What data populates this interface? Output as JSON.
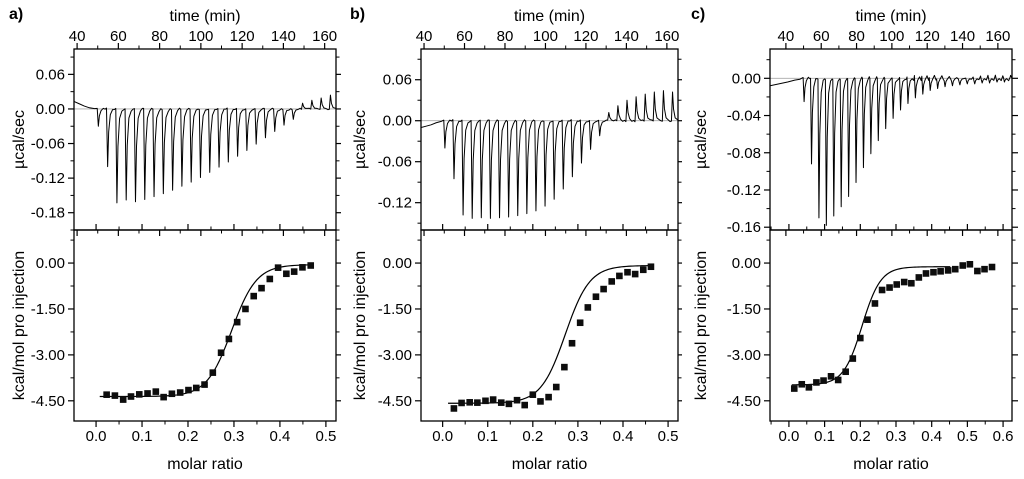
{
  "figure": {
    "background": "#ffffff",
    "ink": "#000000",
    "zero_line_color": "#a8a8a8"
  },
  "chart_data": [
    {
      "label": "a)",
      "top": {
        "type": "line",
        "title": "time (min)",
        "ylabel": "µcal/sec",
        "xlim": [
          38.5,
          165.5
        ],
        "ylim": [
          -0.21,
          0.104
        ],
        "xticks": [
          {
            "v": 40,
            "t": "40"
          },
          {
            "v": 60,
            "t": "60"
          },
          {
            "v": 80,
            "t": "80"
          },
          {
            "v": 100,
            "t": "100"
          },
          {
            "v": 120,
            "t": "120"
          },
          {
            "v": 140,
            "t": "140"
          },
          {
            "v": 160,
            "t": "160"
          }
        ],
        "x_minor_step": 10,
        "yticks": [
          {
            "v": 0.06,
            "t": "0.06"
          },
          {
            "v": 0,
            "t": "0.00"
          },
          {
            "v": -0.06,
            "t": "-0.06"
          },
          {
            "v": -0.12,
            "t": "-0.12"
          },
          {
            "v": -0.18,
            "t": "-0.18"
          }
        ],
        "y_minor_step": 0.03,
        "zero_line": true,
        "pre_baseline": [
          [
            38.5,
            0.013
          ],
          [
            41,
            0.009
          ],
          [
            43.5,
            0.005
          ],
          [
            46,
            0.002
          ],
          [
            48.5,
            0.0005
          ]
        ],
        "injections": {
          "start_min": 50,
          "interval_min": 4.5,
          "peaks_ucal_per_sec": [
            -0.03,
            -0.1,
            -0.163,
            -0.158,
            -0.161,
            -0.157,
            -0.152,
            -0.147,
            -0.141,
            -0.134,
            -0.127,
            -0.119,
            -0.11,
            -0.101,
            -0.092,
            -0.082,
            -0.072,
            -0.061,
            -0.05,
            -0.039,
            -0.028,
            -0.018,
            0.01,
            0.015,
            0.019,
            0.024
          ]
        }
      },
      "bottom": {
        "type": "scatter",
        "ylabel": "kcal/mol pro injection",
        "xlabel": "molar ratio",
        "xlim": [
          -0.048,
          0.522
        ],
        "ylim": [
          -5.16,
          1.08
        ],
        "xticks": [
          {
            "v": 0.0,
            "t": "0.0"
          },
          {
            "v": 0.1,
            "t": "0.1"
          },
          {
            "v": 0.2,
            "t": "0.2"
          },
          {
            "v": 0.3,
            "t": "0.3"
          },
          {
            "v": 0.4,
            "t": "0.4"
          },
          {
            "v": 0.5,
            "t": "0.5"
          }
        ],
        "x_minor_step": 0.05,
        "yticks": [
          {
            "v": 0,
            "t": "0.00"
          },
          {
            "v": -1.5,
            "t": "-1.50"
          },
          {
            "v": -3,
            "t": "-3.00"
          },
          {
            "v": -4.5,
            "t": "-4.50"
          }
        ],
        "y_minor_step": 0.75,
        "points": [
          [
            0.023,
            -4.3
          ],
          [
            0.041,
            -4.33
          ],
          [
            0.059,
            -4.46
          ],
          [
            0.076,
            -4.36
          ],
          [
            0.094,
            -4.29
          ],
          [
            0.112,
            -4.26
          ],
          [
            0.13,
            -4.2
          ],
          [
            0.147,
            -4.38
          ],
          [
            0.165,
            -4.27
          ],
          [
            0.183,
            -4.23
          ],
          [
            0.201,
            -4.15
          ],
          [
            0.218,
            -4.08
          ],
          [
            0.236,
            -3.97
          ],
          [
            0.254,
            -3.58
          ],
          [
            0.272,
            -2.93
          ],
          [
            0.289,
            -2.48
          ],
          [
            0.307,
            -1.93
          ],
          [
            0.325,
            -1.5
          ],
          [
            0.343,
            -1.08
          ],
          [
            0.36,
            -0.82
          ],
          [
            0.378,
            -0.52
          ],
          [
            0.396,
            -0.15
          ],
          [
            0.414,
            -0.35
          ],
          [
            0.431,
            -0.28
          ],
          [
            0.449,
            -0.14
          ],
          [
            0.467,
            -0.08
          ]
        ],
        "fit": {
          "low_plateau": -4.36,
          "high_plateau": -0.05,
          "x_mid": 0.295,
          "width": 0.027,
          "x_min": 0.008,
          "x_max": 0.467
        }
      }
    },
    {
      "label": "b)",
      "top": {
        "type": "line",
        "title": "time (min)",
        "ylabel": "µcal/sec",
        "xlim": [
          38.5,
          165.5
        ],
        "ylim": [
          -0.16,
          0.105
        ],
        "xticks": [
          {
            "v": 40,
            "t": "40"
          },
          {
            "v": 60,
            "t": "60"
          },
          {
            "v": 80,
            "t": "80"
          },
          {
            "v": 100,
            "t": "100"
          },
          {
            "v": 120,
            "t": "120"
          },
          {
            "v": 140,
            "t": "140"
          },
          {
            "v": 160,
            "t": "160"
          }
        ],
        "x_minor_step": 10,
        "yticks": [
          {
            "v": 0.06,
            "t": "0.06"
          },
          {
            "v": 0,
            "t": "0.00"
          },
          {
            "v": -0.06,
            "t": "-0.06"
          },
          {
            "v": -0.12,
            "t": "-0.12"
          }
        ],
        "y_minor_step": 0.03,
        "zero_line": true,
        "pre_baseline": [
          [
            38.5,
            -0.01
          ],
          [
            41,
            -0.008
          ],
          [
            43.5,
            -0.006
          ],
          [
            46,
            -0.003
          ],
          [
            48.5,
            -0.001
          ]
        ],
        "injections": {
          "start_min": 50,
          "interval_min": 4.5,
          "peaks_ucal_per_sec": [
            -0.04,
            -0.085,
            -0.138,
            -0.143,
            -0.142,
            -0.143,
            -0.142,
            -0.141,
            -0.139,
            -0.136,
            -0.132,
            -0.125,
            -0.115,
            -0.1,
            -0.082,
            -0.062,
            -0.042,
            -0.022,
            0.012,
            0.022,
            0.03,
            0.035,
            0.039,
            0.042,
            0.044,
            0.042
          ]
        }
      },
      "bottom": {
        "type": "scatter",
        "ylabel": "kcal/mol pro injection",
        "xlabel": "molar ratio",
        "xlim": [
          -0.048,
          0.522
        ],
        "ylim": [
          -5.16,
          1.08
        ],
        "xticks": [
          {
            "v": 0.0,
            "t": "0.0"
          },
          {
            "v": 0.1,
            "t": "0.1"
          },
          {
            "v": 0.2,
            "t": "0.2"
          },
          {
            "v": 0.3,
            "t": "0.3"
          },
          {
            "v": 0.4,
            "t": "0.4"
          },
          {
            "v": 0.5,
            "t": "0.5"
          }
        ],
        "x_minor_step": 0.05,
        "yticks": [
          {
            "v": 0,
            "t": "0.00"
          },
          {
            "v": -1.5,
            "t": "-1.50"
          },
          {
            "v": -3,
            "t": "-3.00"
          },
          {
            "v": -4.5,
            "t": "-4.50"
          }
        ],
        "y_minor_step": 0.75,
        "points": [
          [
            0.025,
            -4.75
          ],
          [
            0.042,
            -4.57
          ],
          [
            0.06,
            -4.55
          ],
          [
            0.077,
            -4.56
          ],
          [
            0.095,
            -4.5
          ],
          [
            0.112,
            -4.46
          ],
          [
            0.13,
            -4.56
          ],
          [
            0.147,
            -4.6
          ],
          [
            0.165,
            -4.48
          ],
          [
            0.182,
            -4.64
          ],
          [
            0.2,
            -4.3
          ],
          [
            0.217,
            -4.52
          ],
          [
            0.235,
            -4.38
          ],
          [
            0.252,
            -4.05
          ],
          [
            0.27,
            -3.4
          ],
          [
            0.287,
            -2.62
          ],
          [
            0.305,
            -1.95
          ],
          [
            0.322,
            -1.45
          ],
          [
            0.34,
            -1.1
          ],
          [
            0.357,
            -0.85
          ],
          [
            0.375,
            -0.6
          ],
          [
            0.392,
            -0.42
          ],
          [
            0.41,
            -0.3
          ],
          [
            0.427,
            -0.36
          ],
          [
            0.445,
            -0.22
          ],
          [
            0.462,
            -0.12
          ]
        ],
        "fit": {
          "low_plateau": -4.58,
          "high_plateau": -0.08,
          "x_mid": 0.272,
          "width": 0.027,
          "x_min": 0.012,
          "x_max": 0.462
        }
      }
    },
    {
      "label": "c)",
      "top": {
        "type": "line",
        "title": "time (min)",
        "ylabel": "µcal/sec",
        "xlim": [
          31,
          168
        ],
        "ylim": [
          -0.163,
          0.0315
        ],
        "xticks": [
          {
            "v": 40,
            "t": "40"
          },
          {
            "v": 60,
            "t": "60"
          },
          {
            "v": 80,
            "t": "80"
          },
          {
            "v": 100,
            "t": "100"
          },
          {
            "v": 120,
            "t": "120"
          },
          {
            "v": 140,
            "t": "140"
          },
          {
            "v": 160,
            "t": "160"
          }
        ],
        "x_minor_step": 10,
        "yticks": [
          {
            "v": 0,
            "t": "0.00"
          },
          {
            "v": -0.04,
            "t": "-0.04"
          },
          {
            "v": -0.08,
            "t": "-0.08"
          },
          {
            "v": -0.12,
            "t": "-0.12"
          },
          {
            "v": -0.16,
            "t": "-0.16"
          }
        ],
        "y_minor_step": 0.02,
        "zero_line": true,
        "pre_baseline": [
          [
            31,
            -0.008
          ],
          [
            36,
            -0.006
          ],
          [
            41,
            -0.004
          ],
          [
            45,
            -0.002
          ],
          [
            48,
            -0.001
          ]
        ],
        "injections": {
          "start_min": 50,
          "interval_min": 4.2,
          "peaks_ucal_per_sec": [
            -0.025,
            -0.092,
            -0.15,
            -0.158,
            -0.148,
            -0.138,
            -0.127,
            -0.112,
            -0.096,
            -0.081,
            -0.067,
            -0.054,
            -0.043,
            -0.034,
            -0.027,
            -0.021,
            -0.017,
            -0.013,
            -0.011,
            -0.009,
            -0.008,
            -0.007,
            -0.006,
            -0.006,
            -0.005,
            -0.005,
            -0.004,
            -0.004
          ]
        }
      },
      "bottom": {
        "type": "scatter",
        "ylabel": "kcal/mol pro injection",
        "xlabel": "molar ratio",
        "xlim": [
          -0.053,
          0.625
        ],
        "ylim": [
          -5.16,
          1.08
        ],
        "xticks": [
          {
            "v": 0.0,
            "t": "0.0"
          },
          {
            "v": 0.1,
            "t": "0.1"
          },
          {
            "v": 0.2,
            "t": "0.2"
          },
          {
            "v": 0.3,
            "t": "0.3"
          },
          {
            "v": 0.4,
            "t": "0.4"
          },
          {
            "v": 0.5,
            "t": "0.5"
          },
          {
            "v": 0.6,
            "t": "0.6"
          }
        ],
        "x_minor_step": 0.05,
        "yticks": [
          {
            "v": 0,
            "t": "0.00"
          },
          {
            "v": -1.5,
            "t": "-1.50"
          },
          {
            "v": -3,
            "t": "-3.00"
          },
          {
            "v": -4.5,
            "t": "-4.50"
          }
        ],
        "y_minor_step": 0.75,
        "points": [
          [
            0.015,
            -4.1
          ],
          [
            0.036,
            -3.96
          ],
          [
            0.056,
            -4.06
          ],
          [
            0.077,
            -3.9
          ],
          [
            0.097,
            -3.84
          ],
          [
            0.118,
            -3.7
          ],
          [
            0.138,
            -3.82
          ],
          [
            0.159,
            -3.55
          ],
          [
            0.179,
            -3.12
          ],
          [
            0.2,
            -2.45
          ],
          [
            0.22,
            -1.85
          ],
          [
            0.241,
            -1.32
          ],
          [
            0.261,
            -0.88
          ],
          [
            0.282,
            -0.8
          ],
          [
            0.302,
            -0.7
          ],
          [
            0.323,
            -0.62
          ],
          [
            0.343,
            -0.66
          ],
          [
            0.364,
            -0.47
          ],
          [
            0.384,
            -0.34
          ],
          [
            0.405,
            -0.3
          ],
          [
            0.425,
            -0.27
          ],
          [
            0.446,
            -0.24
          ],
          [
            0.466,
            -0.2
          ],
          [
            0.487,
            -0.08
          ],
          [
            0.507,
            -0.04
          ],
          [
            0.528,
            -0.26
          ],
          [
            0.548,
            -0.2
          ],
          [
            0.569,
            -0.13
          ]
        ],
        "fit": {
          "low_plateau": -3.98,
          "high_plateau": -0.12,
          "x_mid": 0.205,
          "width": 0.026,
          "x_min": 0.008,
          "x_max": 0.452
        }
      }
    }
  ]
}
